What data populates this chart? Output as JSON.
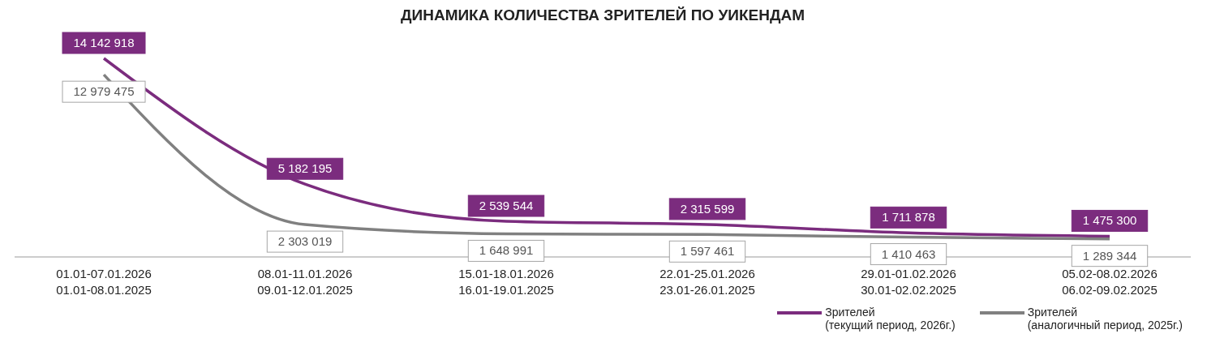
{
  "chart_data": {
    "type": "line",
    "title": "ДИНАМИКА КОЛИЧЕСТВА ЗРИТЕЛЕЙ ПО УИКЕНДАМ",
    "categories": [
      "01.01-07.01.2026\n01.01-08.01.2025",
      "08.01-11.01.2026\n09.01-12.01.2025",
      "15.01-18.01.2026\n16.01-19.01.2025",
      "22.01-25.01.2026\n23.01-26.01.2025",
      "29.01-01.02.2026\n30.01-02.02.2025",
      "05.02-08.02.2026\n06.02-09.02.2025"
    ],
    "series": [
      {
        "name": "Зрителей\n(текущий период, 2026г.)",
        "color": "#7b2c7e",
        "values": [
          14142918,
          5182195,
          2539544,
          2315599,
          1711878,
          1475300
        ]
      },
      {
        "name": "Зрителей\n(аналогичный период, 2025г.)",
        "color": "#808080",
        "values": [
          12979475,
          2303019,
          1648991,
          1597461,
          1410463,
          1289344
        ]
      }
    ],
    "data_labels": true,
    "legend": "bottom right",
    "marker": "none",
    "line_style": "solid"
  }
}
